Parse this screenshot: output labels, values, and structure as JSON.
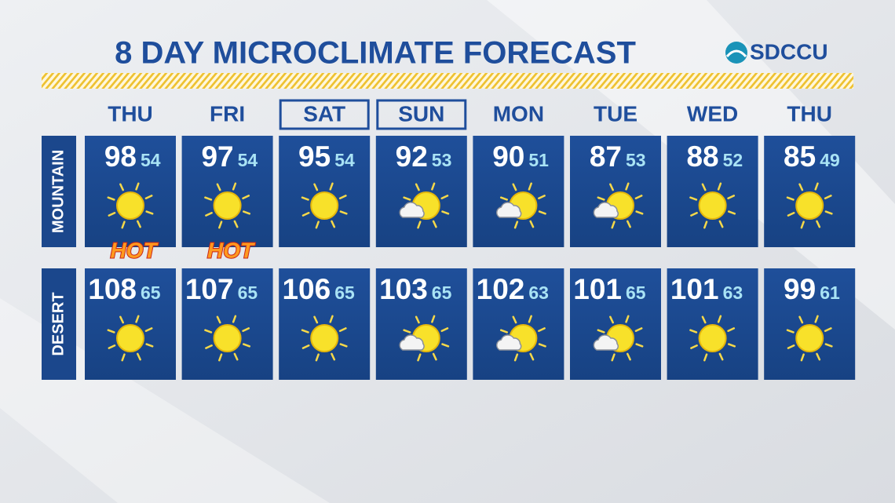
{
  "header": {
    "title": "8 DAY MICROCLIMATE FORECAST",
    "sponsor": "SDCCU"
  },
  "days": [
    {
      "name": "THU",
      "boxed": false,
      "icon": "sun"
    },
    {
      "name": "FRI",
      "boxed": false,
      "icon": "sun"
    },
    {
      "name": "SAT",
      "boxed": true,
      "icon": "sun"
    },
    {
      "name": "SUN",
      "boxed": true,
      "icon": "sun-cloud"
    },
    {
      "name": "MON",
      "boxed": false,
      "icon": "sun-cloud"
    },
    {
      "name": "TUE",
      "boxed": false,
      "icon": "sun-cloud"
    },
    {
      "name": "WED",
      "boxed": false,
      "icon": "sun"
    },
    {
      "name": "THU",
      "boxed": false,
      "icon": "sun"
    }
  ],
  "regions": [
    {
      "name": "MOUNTAIN",
      "highs": [
        98,
        97,
        95,
        92,
        90,
        87,
        88,
        85
      ],
      "lows": [
        54,
        54,
        54,
        53,
        51,
        53,
        52,
        49
      ],
      "badges": [
        "HOT",
        "HOT"
      ]
    },
    {
      "name": "DESERT",
      "highs": [
        108,
        107,
        106,
        103,
        102,
        101,
        101,
        99
      ],
      "lows": [
        65,
        65,
        65,
        65,
        63,
        65,
        63,
        61
      ]
    }
  ]
}
